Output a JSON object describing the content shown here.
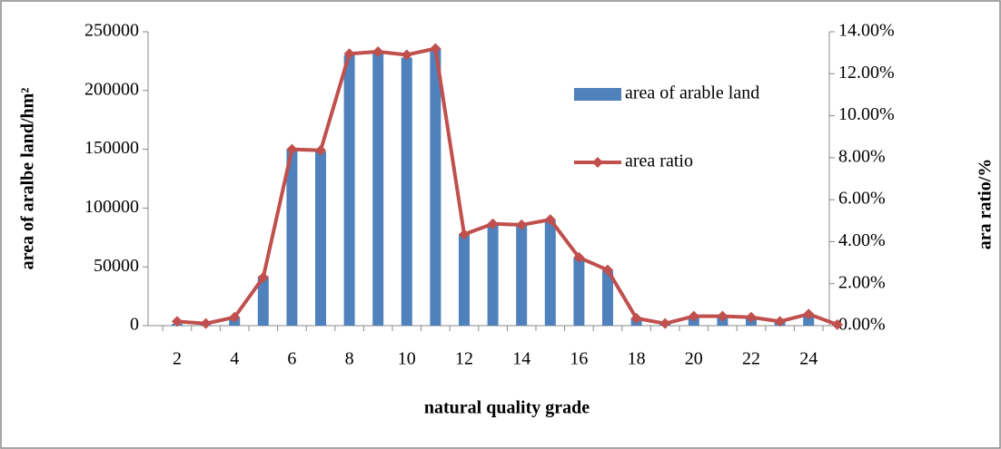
{
  "chart_data": {
    "type": "bar-line",
    "x_label": "natural quality grade",
    "y_label": "area of aralbe land/hm²",
    "y2_label": "ara ratio/%",
    "categories": [
      2,
      null,
      4,
      null,
      6,
      null,
      8,
      null,
      10,
      null,
      12,
      null,
      14,
      null,
      16,
      null,
      18,
      null,
      20,
      null,
      22,
      null,
      24,
      null
    ],
    "series": [
      {
        "name": "area of arable land",
        "color": "#4f81bd",
        "kind": "bar",
        "values": [
          1500,
          800,
          7000,
          42000,
          150000,
          148000,
          230000,
          232000,
          228000,
          236000,
          78000,
          87000,
          86000,
          90000,
          58000,
          47000,
          6000,
          2000,
          8000,
          8000,
          7000,
          4000,
          10000,
          1000
        ]
      },
      {
        "name": "area ratio",
        "color": "#c0504d",
        "kind": "line",
        "axis": "y2",
        "values": [
          0.2,
          0.1,
          0.4,
          2.3,
          8.4,
          8.35,
          12.95,
          13.05,
          12.9,
          13.2,
          4.35,
          4.85,
          4.8,
          5.05,
          3.25,
          2.65,
          0.35,
          0.1,
          0.45,
          0.45,
          0.4,
          0.2,
          0.55,
          0.05
        ]
      }
    ],
    "ylim": [
      0,
      250000
    ],
    "yticks": [
      0,
      50000,
      100000,
      150000,
      200000,
      250000
    ],
    "y2lim": [
      0,
      14
    ],
    "y2ticks": [
      {
        "value": 0,
        "label": "0.00%"
      },
      {
        "value": 2,
        "label": "2.00%"
      },
      {
        "value": 4,
        "label": "4.00%"
      },
      {
        "value": 6,
        "label": "6.00%"
      },
      {
        "value": 8,
        "label": "8.00%"
      },
      {
        "value": 10,
        "label": "10.00%"
      },
      {
        "value": 12,
        "label": "12.00%"
      },
      {
        "value": 14,
        "label": "14.00%"
      }
    ]
  }
}
